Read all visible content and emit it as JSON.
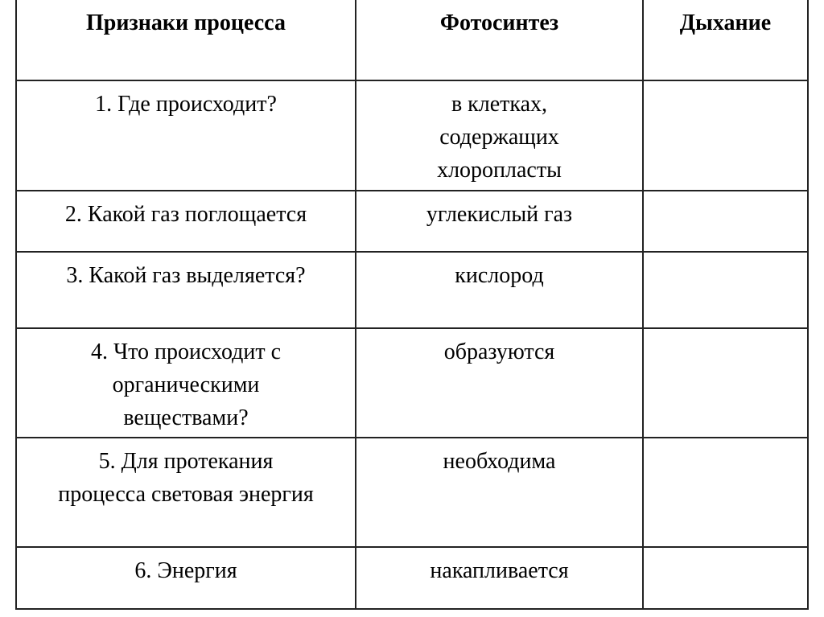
{
  "table": {
    "headers": [
      "Признаки процесса",
      "Фотосинтез",
      "Дыхание"
    ],
    "rows": [
      {
        "question": "1. Где происходит?",
        "photosynthesis": "в клетках,\nсодержащих\nхлоропласты",
        "respiration": ""
      },
      {
        "question": "2. Какой газ поглощается",
        "photosynthesis": "углекислый газ",
        "respiration": ""
      },
      {
        "question": "3. Какой газ выделяется?",
        "photosynthesis": "кислород",
        "respiration": ""
      },
      {
        "question": "4. Что происходит с\nорганическими\nвеществами?",
        "photosynthesis": "образуются",
        "respiration": ""
      },
      {
        "question": "5. Для протекания\nпроцесса световая энергия",
        "photosynthesis": "необходима",
        "respiration": ""
      },
      {
        "question": "6. Энергия",
        "photosynthesis": "накапливается",
        "respiration": ""
      }
    ]
  }
}
